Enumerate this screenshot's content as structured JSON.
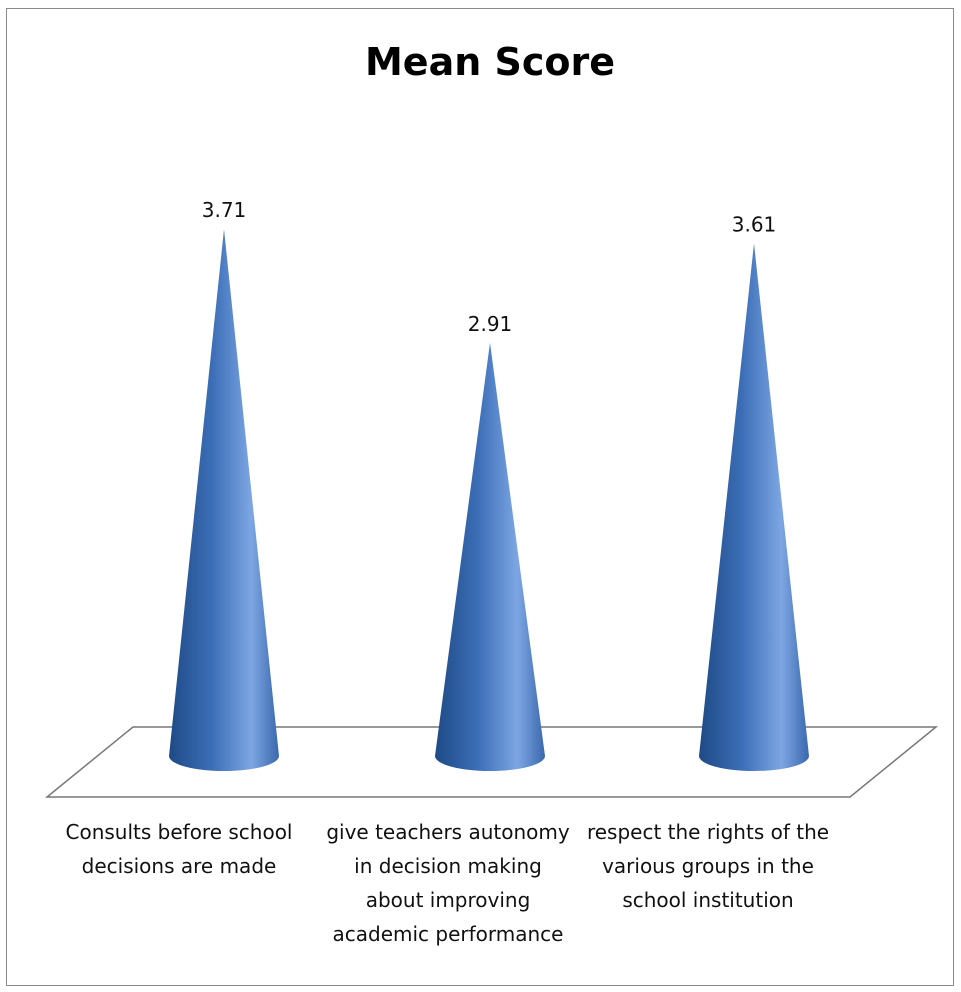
{
  "chart_data": {
    "type": "bar",
    "shape": "cone",
    "title": "Mean Score",
    "categories": [
      "Consults before school decisions are made",
      "give teachers autonomy in decision making about improving academic performance",
      "respect the rights of the various groups in the school institution"
    ],
    "series": [
      {
        "values": [
          3.71,
          2.91,
          3.61
        ],
        "labels": [
          "3.71",
          "2.91",
          "3.61"
        ]
      }
    ],
    "ylim": [
      0,
      4
    ],
    "grid": false,
    "legend": "none",
    "colors": {
      "cone_dark": "#1e4a86",
      "cone_mid": "#3d6fb8",
      "cone_light": "#7da6e3",
      "floor_stroke": "#777777"
    }
  }
}
